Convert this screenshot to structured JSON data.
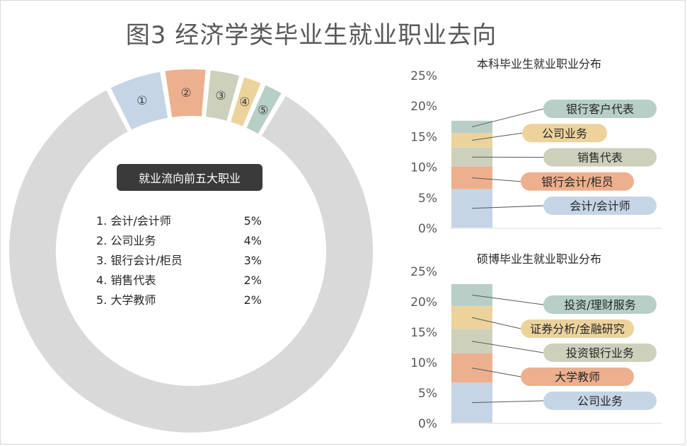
{
  "title": "图3 经济学类毕业生就业职业去向",
  "chart_data": [
    {
      "type": "pie",
      "variant": "donut",
      "header": "就业流向前五大职业",
      "slices": [
        {
          "marker": "①",
          "label": "会计/会计师",
          "value": 5,
          "value_text": "5%",
          "color": "#c5d5e6"
        },
        {
          "marker": "②",
          "label": "公司业务",
          "value": 4,
          "value_text": "4%",
          "color": "#edb08e"
        },
        {
          "marker": "③",
          "label": "银行会计/柜员",
          "value": 3,
          "value_text": "3%",
          "color": "#cdd1bc"
        },
        {
          "marker": "④",
          "label": "销售代表",
          "value": 2,
          "value_text": "2%",
          "color": "#ecd39c"
        },
        {
          "marker": "⑤",
          "label": "大学教师",
          "value": 2,
          "value_text": "2%",
          "color": "#b7cfc6"
        }
      ],
      "rest_color": "#d9d9d9",
      "list": [
        {
          "name": "1. 会计/会计师",
          "value": "5%"
        },
        {
          "name": "2. 公司业务",
          "value": "4%"
        },
        {
          "name": "3. 银行会计/柜员",
          "value": "3%"
        },
        {
          "name": "4. 销售代表",
          "value": "2%"
        },
        {
          "name": "5. 大学教师",
          "value": "2%"
        }
      ]
    },
    {
      "type": "bar",
      "variant": "stacked",
      "title": "本科毕业生就业职业分布",
      "yticks": [
        "25%",
        "20%",
        "15%",
        "10%",
        "5%",
        "0%"
      ],
      "ylim": [
        0,
        25
      ],
      "series": [
        {
          "name": "会计/会计师",
          "value": 6.3,
          "color": "#c5d5e6"
        },
        {
          "name": "银行会计/柜员",
          "value": 3.7,
          "color": "#edb08e"
        },
        {
          "name": "销售代表",
          "value": 3.1,
          "color": "#cdd1bc"
        },
        {
          "name": "公司业务",
          "value": 2.4,
          "color": "#ecd39c"
        },
        {
          "name": "银行客户代表",
          "value": 2.0,
          "color": "#b7cfc6"
        }
      ]
    },
    {
      "type": "bar",
      "variant": "stacked",
      "title": "硕博毕业生就业职业分布",
      "yticks": [
        "25%",
        "20%",
        "15%",
        "10%",
        "5%",
        "0%"
      ],
      "ylim": [
        0,
        25
      ],
      "series": [
        {
          "name": "公司业务",
          "value": 6.6,
          "color": "#c5d5e6"
        },
        {
          "name": "大学教师",
          "value": 4.8,
          "color": "#edb08e"
        },
        {
          "name": "投资银行业务",
          "value": 4.0,
          "color": "#cdd1bc"
        },
        {
          "name": "证券分析/金融研究",
          "value": 3.8,
          "color": "#ecd39c"
        },
        {
          "name": "投资/理财服务",
          "value": 3.6,
          "color": "#b7cfc6"
        }
      ]
    }
  ]
}
